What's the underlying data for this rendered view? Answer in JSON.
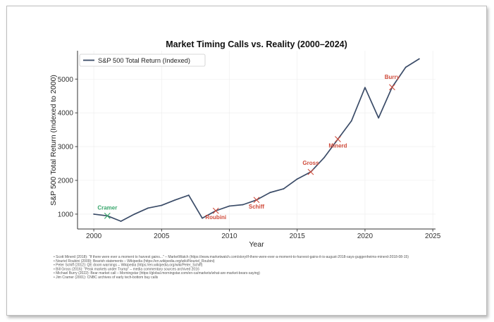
{
  "chart_data": {
    "type": "line",
    "title": "Market Timing Calls vs. Reality (2000–2024)",
    "xlabel": "Year",
    "ylabel": "S&P 500 Total Return (Indexed to 2000)",
    "xlim": [
      1998.8,
      2025.2
    ],
    "ylim": [
      560,
      5840
    ],
    "x_ticks": [
      2000,
      2005,
      2010,
      2015,
      2020,
      2025
    ],
    "y_ticks": [
      1000,
      2000,
      3000,
      4000,
      5000
    ],
    "grid": true,
    "legend": {
      "placement": "top-left",
      "entries": [
        "S&P 500 Total Return (Indexed)"
      ]
    },
    "series": [
      {
        "name": "S&P 500 Total Return (Indexed)",
        "color": "#3b4c68",
        "x": [
          2000,
          2001,
          2002,
          2003,
          2004,
          2005,
          2006,
          2007,
          2008,
          2009,
          2010,
          2011,
          2012,
          2013,
          2014,
          2015,
          2016,
          2017,
          2018,
          2019,
          2020,
          2021,
          2022,
          2023,
          2024
        ],
        "values": [
          1000,
          950,
          790,
          1000,
          1180,
          1260,
          1420,
          1560,
          880,
          1100,
          1240,
          1280,
          1420,
          1640,
          1750,
          2040,
          2250,
          2680,
          3220,
          3760,
          4750,
          3850,
          4760,
          5350,
          5600
        ]
      }
    ],
    "annotations": [
      {
        "label": "Cramer",
        "x": 2001,
        "y": 950,
        "color": "#3aa76d"
      },
      {
        "label": "Roubini",
        "x": 2009,
        "y": 1100,
        "color": "#cf4a3a"
      },
      {
        "label": "Schiff",
        "x": 2012,
        "y": 1420,
        "color": "#cf4a3a"
      },
      {
        "label": "Gross",
        "x": 2016,
        "y": 2250,
        "color": "#cf4a3a"
      },
      {
        "label": "Minerd",
        "x": 2018,
        "y": 3220,
        "color": "#cf4a3a"
      },
      {
        "label": "Burry",
        "x": 2022,
        "y": 4760,
        "color": "#cf4a3a"
      }
    ]
  },
  "footnotes": [
    "• Scott Minerd (2018): \"If there were ever a moment to harvest gains...\" – MarketWatch (https://www.marketwatch.com/story/if-there-were-ever-a-moment-to-harvest-gains-it-is-august-2018-says-guggenheims-minerd-2018-08-15)",
    "• Nouriel Roubini (2009): Bearish statements – Wikipedia (https://en.wikipedia.org/wiki/Nouriel_Roubini)",
    "• Peter Schiff (2012): QE doom warnings – Wikipedia (https://en.wikipedia.org/wiki/Peter_Schiff)",
    "• Bill Gross (2016): \"Peak markets under Trump\" – media commentary sources archived 2016",
    "• Michael Burry (2022): Bear market call – Morningstar (https://global.morningstar.com/en-ca/markets/what-are-market-bears-saying)",
    "• Jim Cramer (2001): CNBC archives of early tech-bottom buy calls"
  ]
}
